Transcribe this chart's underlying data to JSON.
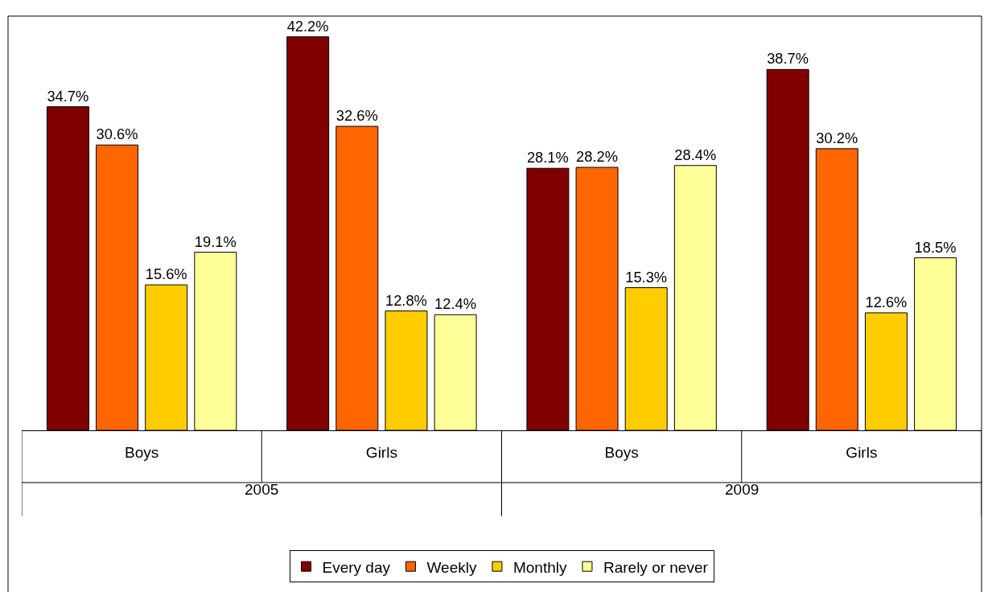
{
  "chart_data": {
    "type": "bar",
    "categories": [
      "Boys",
      "Girls",
      "Boys",
      "Girls"
    ],
    "series": [
      {
        "name": "Every day",
        "color": "#800000",
        "values": [
          34.7,
          42.2,
          28.1,
          38.7
        ],
        "value_labels": [
          "34.7%",
          "42.2%",
          "28.1%",
          "38.7%"
        ]
      },
      {
        "name": "Weekly",
        "color": "#ff6600",
        "values": [
          30.6,
          32.6,
          28.2,
          30.2
        ],
        "value_labels": [
          "30.6%",
          "32.6%",
          "28.2%",
          "30.2%"
        ]
      },
      {
        "name": "Monthly",
        "color": "#ffcc00",
        "values": [
          15.6,
          12.8,
          15.3,
          12.6
        ],
        "value_labels": [
          "15.6%",
          "12.8%",
          "15.3%",
          "12.6%"
        ]
      },
      {
        "name": "Rarely or never",
        "color": "#ffff99",
        "values": [
          19.1,
          12.4,
          28.4,
          18.5
        ],
        "value_labels": [
          "19.1%",
          "12.4%",
          "28.4%",
          "18.5%"
        ]
      }
    ],
    "annotations": [
      "2005",
      "2009"
    ],
    "legend": "bottom"
  }
}
